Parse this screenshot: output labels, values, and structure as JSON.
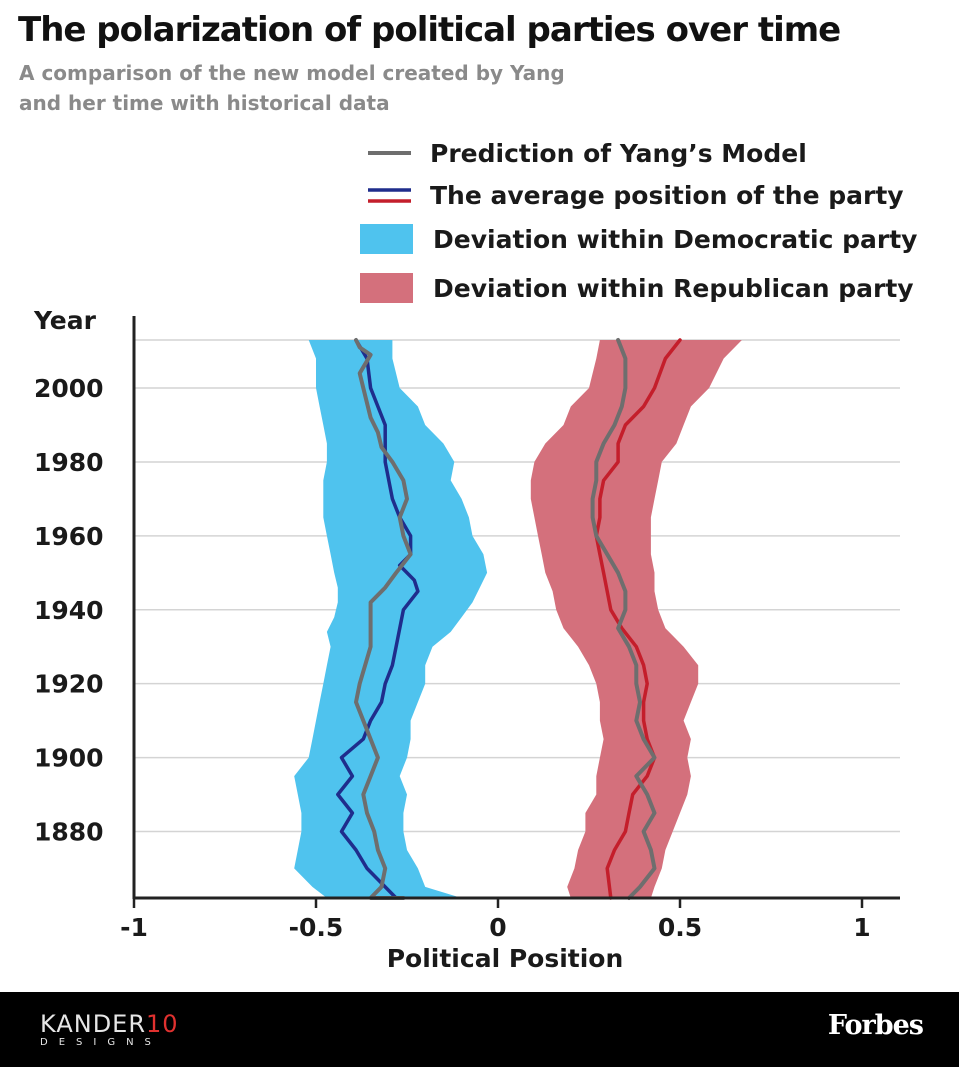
{
  "header": {
    "title": "The polarization of political parties over time",
    "subtitle_line1": "A comparison of the new model created by Yang",
    "subtitle_line2": "and her time with historical data"
  },
  "legend": {
    "model": "Prediction of Yang’s Model",
    "average": "The average position of the party",
    "dem_band": "Deviation within Democratic party",
    "rep_band": "Deviation within Republican party"
  },
  "colors": {
    "dem_band": "#4fc3ee",
    "rep_band": "#d4707c",
    "dem_line": "#1f2d8c",
    "rep_line": "#c41e2b",
    "model_line": "#6e6e6e",
    "grid": "#d4d4d4",
    "footer_bg": "#000000",
    "kander_accent": "#e0312f"
  },
  "footer": {
    "kander_main": "KANDER",
    "kander_number": "10",
    "kander_sub": "DESIGNS",
    "forbes": "Forbes"
  },
  "chart_data": {
    "type": "area",
    "title": "The polarization of political parties over time",
    "xlabel": "Political Position",
    "ylabel": "Year",
    "xlim": [
      -1,
      1
    ],
    "ylim": [
      1862,
      2013
    ],
    "x_ticks": [
      "-1",
      "-0.5",
      "0",
      "0.5",
      "1"
    ],
    "x_tick_values": [
      -1,
      -0.5,
      0,
      0.5,
      1
    ],
    "y_ticks": [
      "1880",
      "1900",
      "1920",
      "1940",
      "1960",
      "1980",
      "2000"
    ],
    "y_tick_values": [
      1880,
      1900,
      1920,
      1940,
      1960,
      1980,
      2000
    ],
    "grid": "horizontal",
    "legend_position": "top-right",
    "bands": [
      {
        "name": "Deviation within Democratic party",
        "points": [
          [
            2013,
            -0.52,
            -0.29
          ],
          [
            2008,
            -0.5,
            -0.29
          ],
          [
            2000,
            -0.5,
            -0.27
          ],
          [
            1995,
            -0.49,
            -0.22
          ],
          [
            1990,
            -0.48,
            -0.2
          ],
          [
            1985,
            -0.47,
            -0.15
          ],
          [
            1980,
            -0.47,
            -0.12
          ],
          [
            1975,
            -0.48,
            -0.13
          ],
          [
            1970,
            -0.48,
            -0.1
          ],
          [
            1965,
            -0.48,
            -0.08
          ],
          [
            1960,
            -0.47,
            -0.07
          ],
          [
            1955,
            -0.46,
            -0.04
          ],
          [
            1950,
            -0.45,
            -0.03
          ],
          [
            1946,
            -0.44,
            -0.05
          ],
          [
            1942,
            -0.44,
            -0.07
          ],
          [
            1938,
            -0.45,
            -0.1
          ],
          [
            1934,
            -0.47,
            -0.13
          ],
          [
            1930,
            -0.46,
            -0.18
          ],
          [
            1925,
            -0.47,
            -0.2
          ],
          [
            1920,
            -0.48,
            -0.2
          ],
          [
            1915,
            -0.49,
            -0.22
          ],
          [
            1910,
            -0.5,
            -0.24
          ],
          [
            1905,
            -0.51,
            -0.24
          ],
          [
            1900,
            -0.52,
            -0.25
          ],
          [
            1895,
            -0.56,
            -0.27
          ],
          [
            1890,
            -0.55,
            -0.25
          ],
          [
            1885,
            -0.54,
            -0.26
          ],
          [
            1880,
            -0.54,
            -0.26
          ],
          [
            1875,
            -0.55,
            -0.25
          ],
          [
            1870,
            -0.56,
            -0.22
          ],
          [
            1865,
            -0.51,
            -0.2
          ],
          [
            1862,
            -0.47,
            -0.1
          ]
        ]
      },
      {
        "name": "Deviation within Republican party",
        "points": [
          [
            2013,
            0.28,
            0.67
          ],
          [
            2008,
            0.27,
            0.62
          ],
          [
            2000,
            0.25,
            0.58
          ],
          [
            1995,
            0.2,
            0.53
          ],
          [
            1990,
            0.18,
            0.51
          ],
          [
            1985,
            0.13,
            0.49
          ],
          [
            1980,
            0.1,
            0.45
          ],
          [
            1975,
            0.09,
            0.44
          ],
          [
            1970,
            0.09,
            0.43
          ],
          [
            1965,
            0.1,
            0.42
          ],
          [
            1960,
            0.11,
            0.42
          ],
          [
            1955,
            0.12,
            0.42
          ],
          [
            1950,
            0.13,
            0.43
          ],
          [
            1945,
            0.15,
            0.43
          ],
          [
            1940,
            0.16,
            0.44
          ],
          [
            1935,
            0.18,
            0.46
          ],
          [
            1930,
            0.22,
            0.51
          ],
          [
            1925,
            0.25,
            0.55
          ],
          [
            1920,
            0.27,
            0.55
          ],
          [
            1915,
            0.28,
            0.53
          ],
          [
            1910,
            0.28,
            0.51
          ],
          [
            1905,
            0.29,
            0.53
          ],
          [
            1900,
            0.28,
            0.52
          ],
          [
            1895,
            0.27,
            0.53
          ],
          [
            1890,
            0.27,
            0.52
          ],
          [
            1885,
            0.24,
            0.5
          ],
          [
            1880,
            0.24,
            0.48
          ],
          [
            1875,
            0.22,
            0.46
          ],
          [
            1870,
            0.21,
            0.45
          ],
          [
            1865,
            0.19,
            0.43
          ],
          [
            1862,
            0.2,
            0.42
          ]
        ]
      }
    ],
    "series": [
      {
        "name": "Democratic average position",
        "x": [
          -0.39,
          -0.36,
          -0.35,
          -0.33,
          -0.31,
          -0.31,
          -0.31,
          -0.3,
          -0.29,
          -0.27,
          -0.24,
          -0.24,
          -0.27,
          -0.23,
          -0.22,
          -0.26,
          -0.28,
          -0.29,
          -0.31,
          -0.32,
          -0.35,
          -0.37,
          -0.43,
          -0.4,
          -0.44,
          -0.4,
          -0.43,
          -0.39,
          -0.36,
          -0.28
        ],
        "y": [
          2013,
          2008,
          2000,
          1995,
          1990,
          1985,
          1980,
          1975,
          1970,
          1965,
          1960,
          1955,
          1952,
          1948,
          1945,
          1940,
          1930,
          1925,
          1920,
          1915,
          1910,
          1905,
          1900,
          1895,
          1890,
          1885,
          1880,
          1875,
          1870,
          1862
        ]
      },
      {
        "name": "Republican average position",
        "x": [
          0.5,
          0.46,
          0.43,
          0.4,
          0.35,
          0.33,
          0.33,
          0.29,
          0.28,
          0.28,
          0.27,
          0.28,
          0.29,
          0.3,
          0.31,
          0.34,
          0.38,
          0.4,
          0.41,
          0.4,
          0.4,
          0.41,
          0.43,
          0.41,
          0.37,
          0.36,
          0.35,
          0.32,
          0.3,
          0.31
        ],
        "y": [
          2013,
          2008,
          2000,
          1995,
          1990,
          1985,
          1980,
          1975,
          1970,
          1965,
          1960,
          1955,
          1950,
          1945,
          1940,
          1935,
          1930,
          1925,
          1920,
          1915,
          1910,
          1905,
          1900,
          1895,
          1890,
          1885,
          1880,
          1875,
          1870,
          1862
        ]
      },
      {
        "name": "Democratic model prediction",
        "x": [
          -0.39,
          -0.38,
          -0.35,
          -0.38,
          -0.37,
          -0.35,
          -0.33,
          -0.32,
          -0.29,
          -0.26,
          -0.25,
          -0.27,
          -0.26,
          -0.24,
          -0.28,
          -0.31,
          -0.35,
          -0.35,
          -0.35,
          -0.38,
          -0.39,
          -0.37,
          -0.35,
          -0.33,
          -0.35,
          -0.37,
          -0.36,
          -0.34,
          -0.33,
          -0.31,
          -0.32,
          -0.35,
          -0.26
        ],
        "y": [
          2013,
          2011,
          2009,
          2004,
          2000,
          1992,
          1988,
          1984,
          1980,
          1975,
          1970,
          1965,
          1960,
          1955,
          1950,
          1946,
          1942,
          1935,
          1930,
          1920,
          1915,
          1910,
          1905,
          1900,
          1895,
          1890,
          1885,
          1880,
          1875,
          1870,
          1865,
          1862,
          1862
        ]
      },
      {
        "name": "Republican model prediction",
        "x": [
          0.33,
          0.35,
          0.35,
          0.34,
          0.32,
          0.29,
          0.27,
          0.27,
          0.26,
          0.26,
          0.27,
          0.3,
          0.33,
          0.35,
          0.35,
          0.33,
          0.36,
          0.38,
          0.38,
          0.39,
          0.38,
          0.4,
          0.43,
          0.38,
          0.41,
          0.43,
          0.4,
          0.42,
          0.43,
          0.39,
          0.36
        ],
        "y": [
          2013,
          2008,
          2000,
          1995,
          1990,
          1985,
          1980,
          1975,
          1970,
          1965,
          1960,
          1955,
          1950,
          1945,
          1940,
          1935,
          1930,
          1925,
          1920,
          1915,
          1910,
          1905,
          1900,
          1895,
          1890,
          1885,
          1880,
          1875,
          1870,
          1865,
          1862
        ]
      }
    ]
  }
}
